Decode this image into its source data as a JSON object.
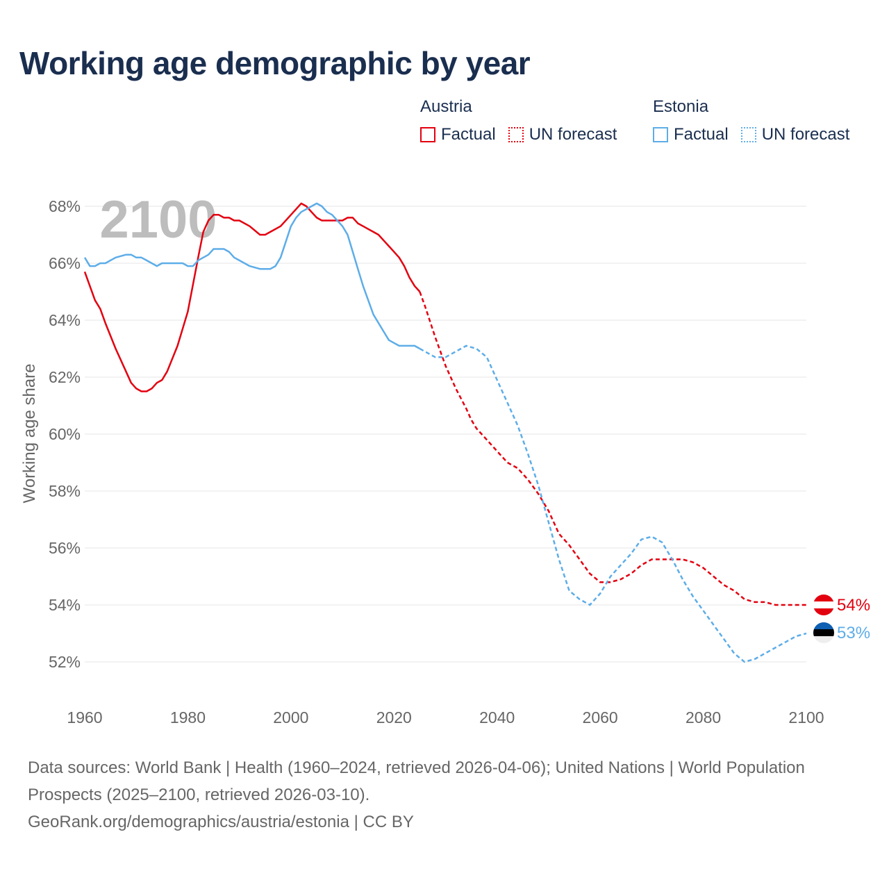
{
  "title": "Working age demographic by year",
  "legend": {
    "groups": [
      {
        "name": "Austria",
        "color": "#e3000f",
        "items": [
          "Factual",
          "UN forecast"
        ]
      },
      {
        "name": "Estonia",
        "color": "#5dade8",
        "items": [
          "Factual",
          "UN forecast"
        ]
      }
    ]
  },
  "footer": {
    "sources": "Data sources: World Bank | Health (1960–2024, retrieved 2026-04-06); United Nations | World Population Prospects (2025–2100, retrieved 2026-03-10).",
    "link": "GeoRank.org/demographics/austria/estonia | CC BY"
  },
  "chart_data": {
    "type": "line",
    "title": "Working age demographic by year",
    "year_label": "2100",
    "xlabel": "",
    "ylabel": "Working age share",
    "xlim": [
      1960,
      2100
    ],
    "ylim": [
      51,
      69
    ],
    "x_ticks": [
      1960,
      1980,
      2000,
      2020,
      2040,
      2060,
      2080,
      2100
    ],
    "x_tick_labels": [
      "1960",
      "1980",
      "2000",
      "2020",
      "2040",
      "2060",
      "2080",
      "2100"
    ],
    "y_ticks": [
      52,
      54,
      56,
      58,
      60,
      62,
      64,
      66,
      68
    ],
    "y_tick_labels": [
      "52%",
      "54%",
      "56%",
      "58%",
      "60%",
      "62%",
      "64%",
      "66%",
      "68%"
    ],
    "grid": true,
    "end_labels": [
      {
        "series": "Austria",
        "text": "54%",
        "color": "#e3000f",
        "flag": "austria"
      },
      {
        "series": "Estonia",
        "text": "53%",
        "color": "#5dade8",
        "flag": "estonia"
      }
    ],
    "series": [
      {
        "name": "Austria",
        "color": "#e3000f",
        "factual": {
          "x": [
            1960,
            1962,
            1963,
            1964,
            1966,
            1968,
            1969,
            1970,
            1971,
            1972,
            1973,
            1974,
            1975,
            1976,
            1978,
            1980,
            1982,
            1983,
            1984,
            1985,
            1986,
            1987,
            1988,
            1989,
            1990,
            1992,
            1994,
            1995,
            1996,
            1998,
            2000,
            2002,
            2003,
            2004,
            2005,
            2006,
            2007,
            2008,
            2009,
            2010,
            2011,
            2012,
            2013,
            2014,
            2015,
            2016,
            2017,
            2018,
            2019,
            2020,
            2021,
            2022,
            2023,
            2024,
            2025
          ],
          "y": [
            65.7,
            64.7,
            64.4,
            63.9,
            63.0,
            62.2,
            61.8,
            61.6,
            61.5,
            61.5,
            61.6,
            61.8,
            61.9,
            62.2,
            63.1,
            64.3,
            66.2,
            67.1,
            67.5,
            67.7,
            67.7,
            67.6,
            67.6,
            67.5,
            67.5,
            67.3,
            67.0,
            67.0,
            67.1,
            67.3,
            67.7,
            68.1,
            68.0,
            67.8,
            67.6,
            67.5,
            67.5,
            67.5,
            67.5,
            67.5,
            67.6,
            67.6,
            67.4,
            67.3,
            67.2,
            67.1,
            67.0,
            66.8,
            66.6,
            66.4,
            66.2,
            65.9,
            65.5,
            65.2,
            65.0
          ]
        },
        "forecast": {
          "x": [
            2025,
            2026,
            2028,
            2030,
            2032,
            2034,
            2035,
            2036,
            2038,
            2040,
            2042,
            2044,
            2046,
            2048,
            2050,
            2052,
            2054,
            2056,
            2058,
            2060,
            2062,
            2064,
            2066,
            2068,
            2070,
            2072,
            2074,
            2076,
            2078,
            2080,
            2082,
            2084,
            2086,
            2088,
            2090,
            2092,
            2094,
            2096,
            2098,
            2100
          ],
          "y": [
            65.0,
            64.5,
            63.4,
            62.4,
            61.6,
            60.9,
            60.5,
            60.2,
            59.8,
            59.4,
            59.0,
            58.8,
            58.4,
            57.9,
            57.3,
            56.5,
            56.1,
            55.6,
            55.1,
            54.8,
            54.8,
            54.9,
            55.1,
            55.4,
            55.6,
            55.6,
            55.6,
            55.6,
            55.5,
            55.3,
            55.0,
            54.7,
            54.5,
            54.2,
            54.1,
            54.1,
            54.0,
            54.0,
            54.0,
            54.0
          ]
        }
      },
      {
        "name": "Estonia",
        "color": "#5dade8",
        "factual": {
          "x": [
            1960,
            1961,
            1962,
            1963,
            1964,
            1966,
            1968,
            1969,
            1970,
            1971,
            1972,
            1973,
            1974,
            1975,
            1976,
            1978,
            1979,
            1980,
            1981,
            1982,
            1983,
            1984,
            1985,
            1986,
            1987,
            1988,
            1989,
            1990,
            1992,
            1994,
            1995,
            1996,
            1997,
            1998,
            2000,
            2001,
            2002,
            2003,
            2004,
            2005,
            2006,
            2007,
            2008,
            2009,
            2010,
            2011,
            2012,
            2013,
            2014,
            2015,
            2016,
            2017,
            2018,
            2019,
            2020,
            2021,
            2022,
            2023,
            2024,
            2025
          ],
          "y": [
            66.2,
            65.9,
            65.9,
            66.0,
            66.0,
            66.2,
            66.3,
            66.3,
            66.2,
            66.2,
            66.1,
            66.0,
            65.9,
            66.0,
            66.0,
            66.0,
            66.0,
            65.9,
            65.9,
            66.1,
            66.2,
            66.3,
            66.5,
            66.5,
            66.5,
            66.4,
            66.2,
            66.1,
            65.9,
            65.8,
            65.8,
            65.8,
            65.9,
            66.2,
            67.3,
            67.6,
            67.8,
            67.9,
            68.0,
            68.1,
            68.0,
            67.8,
            67.7,
            67.5,
            67.3,
            67.0,
            66.4,
            65.8,
            65.2,
            64.7,
            64.2,
            63.9,
            63.6,
            63.3,
            63.2,
            63.1,
            63.1,
            63.1,
            63.1,
            63.0
          ]
        },
        "forecast": {
          "x": [
            2025,
            2026,
            2028,
            2030,
            2032,
            2034,
            2036,
            2038,
            2040,
            2042,
            2044,
            2046,
            2048,
            2050,
            2052,
            2054,
            2056,
            2058,
            2060,
            2062,
            2064,
            2066,
            2068,
            2070,
            2072,
            2074,
            2076,
            2078,
            2080,
            2082,
            2084,
            2086,
            2088,
            2090,
            2092,
            2094,
            2096,
            2098,
            2100
          ],
          "y": [
            63.0,
            62.9,
            62.7,
            62.7,
            62.9,
            63.1,
            63.0,
            62.7,
            61.9,
            61.1,
            60.3,
            59.3,
            58.2,
            56.9,
            55.6,
            54.5,
            54.2,
            54.0,
            54.4,
            55.0,
            55.4,
            55.8,
            56.3,
            56.4,
            56.2,
            55.6,
            54.9,
            54.3,
            53.8,
            53.3,
            52.8,
            52.3,
            52.0,
            52.1,
            52.3,
            52.5,
            52.7,
            52.9,
            53.0
          ]
        }
      }
    ]
  }
}
